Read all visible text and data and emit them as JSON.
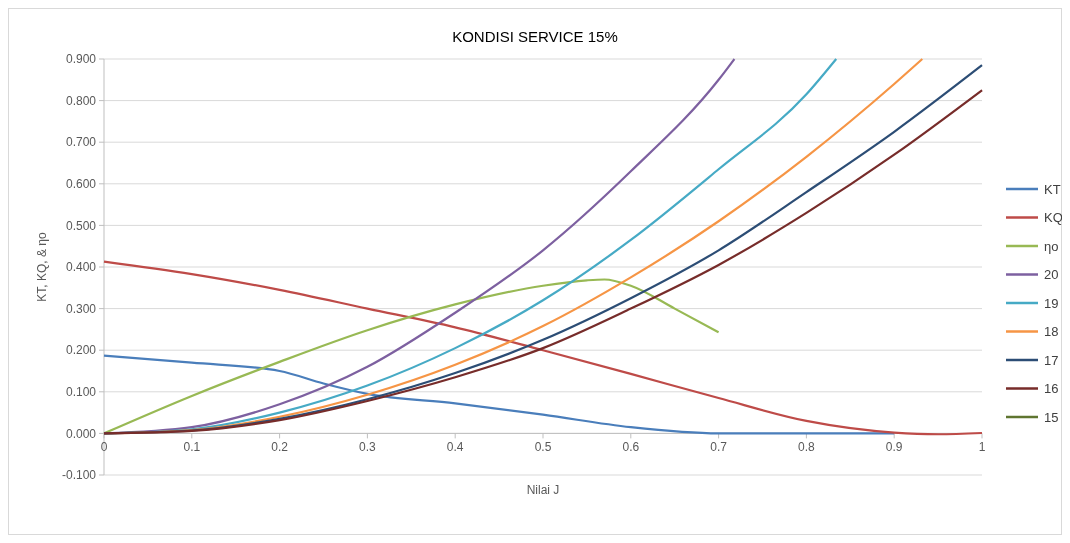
{
  "chart_data": {
    "type": "line",
    "title": "KONDISI SERVICE 15%",
    "xlabel": "Nilai J",
    "ylabel": "KT, KQ, & ηo",
    "xlim": [
      0,
      1
    ],
    "xticks": [
      0,
      0.1,
      0.2,
      0.3,
      0.4,
      0.5,
      0.6,
      0.7,
      0.8,
      0.9,
      1
    ],
    "ylim": [
      -0.1,
      0.9
    ],
    "yticks": [
      {
        "value": -0.1,
        "label": "-0.100"
      },
      {
        "value": 0,
        "label": "0.000"
      },
      {
        "value": 0.1,
        "label": "0.100"
      },
      {
        "value": 0.2,
        "label": "0.200"
      },
      {
        "value": 0.3,
        "label": "0.300"
      },
      {
        "value": 0.4,
        "label": "0.400"
      },
      {
        "value": 0.5,
        "label": "0.500"
      },
      {
        "value": 0.6,
        "label": "0.600"
      },
      {
        "value": 0.7,
        "label": "0.700"
      },
      {
        "value": 0.8,
        "label": "0.800"
      },
      {
        "value": 0.9,
        "label": "0.900"
      }
    ],
    "grid": "y",
    "legend": "right",
    "marker": "none",
    "line_style": "solid",
    "series": [
      {
        "name": "KT",
        "color": "#4a7ebb",
        "x": [
          0,
          0.1,
          0.2,
          0.25,
          0.3,
          0.4,
          0.5,
          0.6,
          0.7,
          0.8,
          0.9
        ],
        "values": [
          0.187,
          0.17,
          0.15,
          0.12,
          0.095,
          0.072,
          0.045,
          0.015,
          0.0,
          0.0,
          0.0
        ]
      },
      {
        "name": "KQ",
        "color": "#be4b48",
        "x": [
          0,
          0.1,
          0.2,
          0.3,
          0.4,
          0.5,
          0.6,
          0.7,
          0.8,
          0.9,
          0.95,
          1
        ],
        "values": [
          0.413,
          0.383,
          0.345,
          0.3,
          0.255,
          0.2,
          0.143,
          0.085,
          0.03,
          0.002,
          -0.002,
          0.001
        ]
      },
      {
        "name": "ηo",
        "color": "#98b954",
        "x": [
          0,
          0.1,
          0.2,
          0.3,
          0.4,
          0.5,
          0.55,
          0.57,
          0.6,
          0.65,
          0.7
        ],
        "values": [
          0,
          0.09,
          0.172,
          0.248,
          0.31,
          0.355,
          0.368,
          0.37,
          0.355,
          0.3,
          0.243
        ]
      },
      {
        "name": "20",
        "color": "#7d60a0",
        "x": [
          0,
          0.1,
          0.2,
          0.3,
          0.4,
          0.5,
          0.6,
          0.7,
          0.718
        ],
        "values": [
          0,
          0.015,
          0.07,
          0.16,
          0.29,
          0.44,
          0.63,
          0.85,
          0.9
        ]
      },
      {
        "name": "19",
        "color": "#46aac5",
        "x": [
          0,
          0.1,
          0.2,
          0.3,
          0.4,
          0.5,
          0.6,
          0.7,
          0.8,
          0.834
        ],
        "values": [
          0,
          0.01,
          0.05,
          0.115,
          0.205,
          0.32,
          0.465,
          0.635,
          0.815,
          0.9
        ]
      },
      {
        "name": "18",
        "color": "#f69545",
        "x": [
          0,
          0.1,
          0.2,
          0.3,
          0.4,
          0.5,
          0.6,
          0.7,
          0.8,
          0.9,
          0.932
        ],
        "values": [
          0,
          0.008,
          0.04,
          0.093,
          0.165,
          0.258,
          0.375,
          0.51,
          0.665,
          0.84,
          0.9
        ]
      },
      {
        "name": "17",
        "color": "#2c4d75",
        "x": [
          0,
          0.1,
          0.2,
          0.3,
          0.4,
          0.5,
          0.6,
          0.7,
          0.8,
          0.9,
          1
        ],
        "values": [
          0,
          0.007,
          0.035,
          0.082,
          0.145,
          0.225,
          0.325,
          0.44,
          0.58,
          0.725,
          0.885
        ]
      },
      {
        "name": "16",
        "color": "#772c2a",
        "x": [
          0,
          0.1,
          0.2,
          0.3,
          0.4,
          0.5,
          0.6,
          0.7,
          0.8,
          0.9,
          1
        ],
        "values": [
          0,
          0.006,
          0.032,
          0.078,
          0.135,
          0.205,
          0.3,
          0.405,
          0.53,
          0.67,
          0.825
        ]
      },
      {
        "name": "15",
        "color": "#5f7530"
      }
    ]
  }
}
